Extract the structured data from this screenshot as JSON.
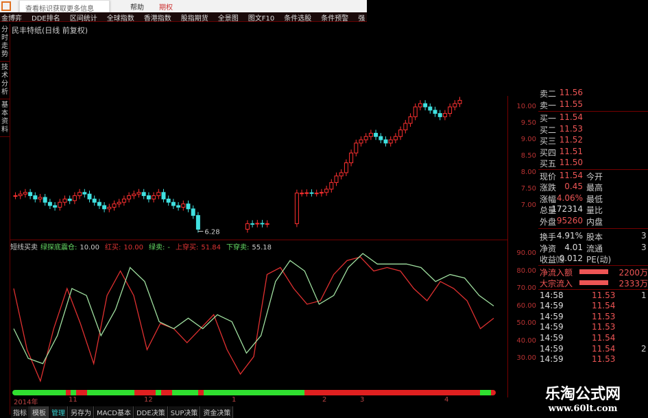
{
  "topbar": {
    "tooltip": "查看标识获取更多信息",
    "help": "帮助",
    "options": "期权"
  },
  "menu": [
    "金博弈",
    "DDE排名",
    "区间统计",
    "全球指数",
    "香港指数",
    "股指期货",
    "全景图",
    "图文F10",
    "条件选股",
    "条件预警",
    "强"
  ],
  "left_tabs": [
    "分时走势",
    "技术分析",
    "基本资料"
  ],
  "chart_title": "民丰特纸(日线 前复权)",
  "low_label": "6.28",
  "price_ticks": [
    "10.00",
    "9.50",
    "9.00",
    "8.50",
    "8.00",
    "7.50",
    "7.00"
  ],
  "ind_ticks": [
    "90.00",
    "80.00",
    "70.00",
    "60.00",
    "50.00",
    "40.00",
    "30.00"
  ],
  "indicator": {
    "name": "短线买卖",
    "a_label": "绿探底震仓:",
    "a_val": "10.00",
    "b_label": "红买:",
    "b_val": "10.00",
    "c_label": "绿卖:",
    "c_val": "-",
    "d_label": "上穿买:",
    "d_val": "51.84",
    "e_label": "下穿卖:",
    "e_val": "55.18"
  },
  "colors": {
    "up": "#ff3030",
    "down": "#40e0e0",
    "line1": "#e03030",
    "line2": "#a0e0a0",
    "buy": "#30e030",
    "sell": "#e02020"
  },
  "chart_data": {
    "type": "candlestick+line",
    "closes": [
      7.3,
      7.35,
      7.4,
      7.3,
      7.2,
      7.25,
      7.1,
      7.0,
      6.95,
      7.1,
      7.2,
      7.15,
      7.3,
      7.4,
      7.35,
      7.2,
      7.1,
      7.0,
      6.9,
      6.95,
      7.05,
      7.1,
      7.2,
      7.3,
      7.35,
      7.4,
      7.3,
      7.2,
      7.3,
      7.4,
      7.2,
      7.1,
      7.0,
      6.95,
      7.05,
      6.9,
      6.7,
      6.28,
      null,
      null,
      null,
      null,
      null,
      null,
      null,
      null,
      null,
      6.45,
      6.44,
      6.46,
      6.44,
      6.45,
      null,
      null,
      null,
      null,
      null,
      7.38,
      7.38,
      7.39,
      7.38,
      7.38,
      7.4,
      7.5,
      7.7,
      7.9,
      8.0,
      8.3,
      8.6,
      8.9,
      9.0,
      9.1,
      9.2,
      9.1,
      9.0,
      8.9,
      9.0,
      9.1,
      9.3,
      9.5,
      9.7,
      10.0,
      10.1,
      10.0,
      9.9,
      9.8,
      9.7,
      9.8,
      10.0,
      10.1,
      10.2
    ],
    "line1": [
      70,
      35,
      17,
      47,
      70,
      50,
      27,
      66,
      80,
      66,
      35,
      50,
      47,
      39,
      47,
      55,
      35,
      21,
      31,
      78,
      82,
      70,
      61,
      63,
      78,
      86,
      88,
      80,
      82,
      80,
      70,
      63,
      74,
      70,
      63,
      47,
      53
    ],
    "line2": [
      47,
      30,
      27,
      43,
      70,
      66,
      43,
      58,
      82,
      74,
      51,
      47,
      53,
      47,
      55,
      51,
      33,
      43,
      74,
      86,
      80,
      61,
      66,
      82,
      90,
      84,
      84,
      84,
      82,
      74,
      78,
      76,
      66,
      60
    ],
    "signal": [
      "b",
      "b",
      "b",
      "b",
      "b",
      "b",
      "b",
      "b",
      "b",
      "b",
      "s",
      "b",
      "s",
      "s",
      "b",
      "b",
      "b",
      "b",
      "b",
      "b",
      "b",
      "b",
      "b",
      "s",
      "s",
      "s",
      "s",
      "b",
      "s",
      "s",
      "b",
      "b",
      "b",
      "b",
      "b",
      "s",
      "b",
      "b",
      "b",
      "b",
      "b",
      "b",
      "b",
      "b",
      "b",
      "b",
      "b",
      "b",
      "b",
      "b",
      "b",
      "b",
      "b",
      "b",
      "b",
      "s",
      "s",
      "s",
      "s",
      "s",
      "s",
      "s",
      "s",
      "s",
      "s",
      "s",
      "s",
      "s",
      "s",
      "s",
      "s",
      "s",
      "s",
      "s",
      "s",
      "s",
      "s",
      "s",
      "s",
      "s",
      "s",
      "s",
      "s",
      "s",
      "s",
      "s",
      "s",
      "s",
      "b",
      "b",
      "s"
    ],
    "dates": [
      "2014年",
      "11",
      "12",
      "1",
      "2",
      "3",
      "4"
    ]
  },
  "quote": {
    "sell2": {
      "label": "卖二",
      "val": "11.56"
    },
    "sell1": {
      "label": "卖一",
      "val": "11.55"
    },
    "buys": [
      {
        "label": "买一",
        "val": "11.54"
      },
      {
        "label": "买二",
        "val": "11.53"
      },
      {
        "label": "买三",
        "val": "11.52"
      },
      {
        "label": "买四",
        "val": "11.51"
      },
      {
        "label": "买五",
        "val": "11.50"
      }
    ],
    "stats": [
      {
        "l": "现价",
        "v": "11.54",
        "r": "今开"
      },
      {
        "l": "涨跌",
        "v": "0.45",
        "r": "最高"
      },
      {
        "l": "涨幅",
        "v": "4.06%",
        "r": "最低"
      },
      {
        "l": "总量",
        "v": "172314",
        "r": "量比",
        "w": true
      },
      {
        "l": "外盘",
        "v": "95260",
        "r": "内盘"
      }
    ],
    "stats2": [
      {
        "l": "换手",
        "v": "4.91%",
        "r": "股本",
        "x": "3"
      },
      {
        "l": "净资",
        "v": "4.01",
        "r": "流通",
        "x": "3"
      },
      {
        "l": "收益⒀",
        "v": "0.012",
        "r": "PE(动)"
      }
    ],
    "flows": [
      {
        "l": "净流入额",
        "v": "2200万"
      },
      {
        "l": "大宗流入",
        "v": "2333万"
      }
    ],
    "ticks": [
      {
        "t": "14:58",
        "p": "11.53",
        "x": "1"
      },
      {
        "t": "14:59",
        "p": "11.54",
        "x": ""
      },
      {
        "t": "14:59",
        "p": "11.53",
        "x": ""
      },
      {
        "t": "14:59",
        "p": "11.53",
        "x": ""
      },
      {
        "t": "14:59",
        "p": "11.54",
        "x": ""
      },
      {
        "t": "14:59",
        "p": "11.54",
        "x": "2"
      },
      {
        "t": "14:59",
        "p": "11.53",
        "x": ""
      }
    ]
  },
  "bottom_tabs": [
    "指标",
    "模板",
    "管理",
    "另存为",
    "MACD基本",
    "DDE决策",
    "SUP决策",
    "资金决策"
  ],
  "watermark": {
    "name": "乐淘公式网",
    "url": "www.60lt.com"
  }
}
